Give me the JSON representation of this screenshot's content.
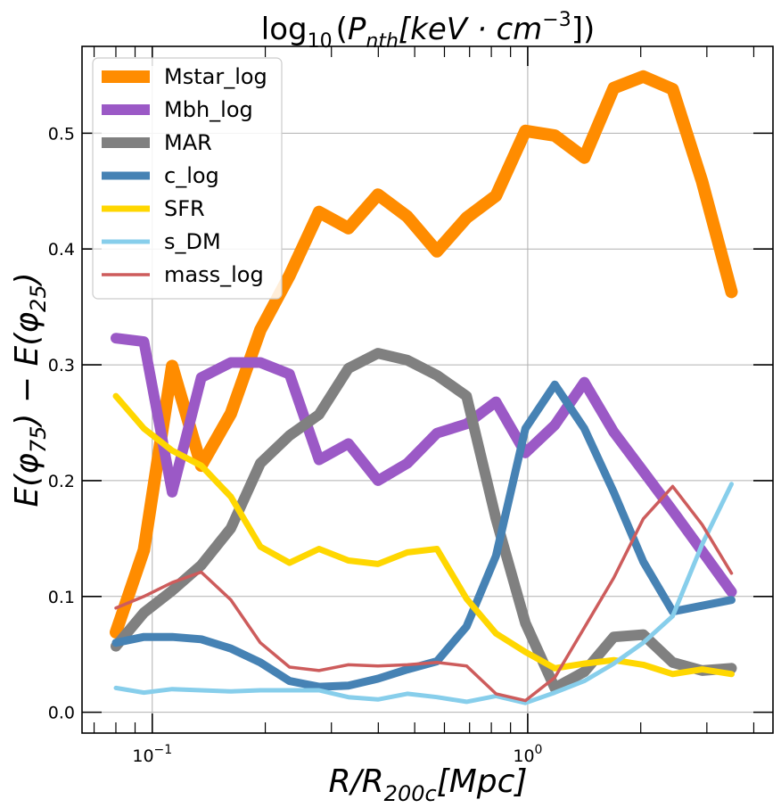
{
  "chart_data": {
    "type": "line",
    "title_parts": {
      "log": "log",
      "log_sub": "10",
      "open": "(",
      "P": "P",
      "P_sub": "nth",
      "bracket": "[keV · cm",
      "exp": "−3",
      "close": "])"
    },
    "xlabel_parts": {
      "main": "R/R",
      "sub": "200c",
      "unit": "[Mpc]"
    },
    "ylabel_parts": {
      "a": "E(φ",
      "a_sub": "75",
      "b": ") − E(φ",
      "b_sub": "25",
      "c": ")"
    },
    "xscale": "log",
    "xlim": [
      0.065,
      4.5
    ],
    "ylim": [
      -0.018,
      0.575
    ],
    "grid": true,
    "legend_position": "upper-left",
    "y_ticks": [
      0.0,
      0.1,
      0.2,
      0.3,
      0.4,
      0.5
    ],
    "y_tick_labels": [
      "0.0",
      "0.1",
      "0.2",
      "0.3",
      "0.4",
      "0.5"
    ],
    "x_major_ticks": [
      0.1,
      1.0
    ],
    "x_tick_labels": [
      {
        "base": "10",
        "exp": "−1"
      },
      {
        "base": "10",
        "exp": "0"
      }
    ],
    "x_minor_ticks": [
      0.07,
      0.08,
      0.09,
      0.2,
      0.3,
      0.4,
      0.5,
      0.6,
      0.7,
      0.8,
      0.9,
      2,
      3,
      4
    ],
    "x": [
      0.08,
      0.095,
      0.113,
      0.135,
      0.162,
      0.194,
      0.232,
      0.278,
      0.333,
      0.399,
      0.478,
      0.573,
      0.687,
      0.823,
      0.986,
      1.181,
      1.415,
      1.695,
      2.031,
      2.433,
      2.915,
      3.49
    ],
    "series": [
      {
        "name": "Mstar_log",
        "color": "#ff8c00",
        "width": 14,
        "values": [
          0.069,
          0.14,
          0.299,
          0.213,
          0.258,
          0.33,
          0.377,
          0.432,
          0.418,
          0.447,
          0.428,
          0.398,
          0.427,
          0.446,
          0.502,
          0.498,
          0.479,
          0.539,
          0.549,
          0.538,
          0.458,
          0.363
        ]
      },
      {
        "name": "Mbh_log",
        "color": "#9b59c6",
        "width": 12,
        "values": [
          0.323,
          0.32,
          0.19,
          0.289,
          0.302,
          0.302,
          0.292,
          0.218,
          0.232,
          0.2,
          0.215,
          0.241,
          0.249,
          0.268,
          0.224,
          0.248,
          0.285,
          0.242,
          0.208,
          0.174,
          0.139,
          0.104
        ]
      },
      {
        "name": "MAR",
        "color": "#808080",
        "width": 12,
        "values": [
          0.057,
          0.086,
          0.105,
          0.127,
          0.159,
          0.215,
          0.239,
          0.257,
          0.297,
          0.31,
          0.304,
          0.291,
          0.273,
          0.167,
          0.077,
          0.021,
          0.035,
          0.065,
          0.067,
          0.043,
          0.036,
          0.038
        ]
      },
      {
        "name": "c_log",
        "color": "#4682b4",
        "width": 9,
        "values": [
          0.06,
          0.065,
          0.065,
          0.063,
          0.055,
          0.043,
          0.027,
          0.022,
          0.023,
          0.029,
          0.037,
          0.044,
          0.074,
          0.135,
          0.245,
          0.283,
          0.245,
          0.19,
          0.13,
          0.087,
          0.092,
          0.097
        ]
      },
      {
        "name": "SFR",
        "color": "#ffd700",
        "width": 7,
        "values": [
          0.273,
          0.245,
          0.226,
          0.213,
          0.186,
          0.143,
          0.129,
          0.141,
          0.131,
          0.128,
          0.138,
          0.141,
          0.098,
          0.068,
          0.052,
          0.038,
          0.042,
          0.045,
          0.041,
          0.033,
          0.037,
          0.033
        ]
      },
      {
        "name": "s_DM",
        "color": "#87ceeb",
        "width": 5,
        "values": [
          0.021,
          0.017,
          0.02,
          0.019,
          0.018,
          0.019,
          0.019,
          0.019,
          0.013,
          0.011,
          0.016,
          0.013,
          0.009,
          0.014,
          0.008,
          0.017,
          0.027,
          0.042,
          0.06,
          0.083,
          0.145,
          0.197
        ]
      },
      {
        "name": "mass_log",
        "color": "#cd5c5c",
        "width": 3.5,
        "values": [
          0.09,
          0.1,
          0.112,
          0.121,
          0.097,
          0.06,
          0.039,
          0.036,
          0.041,
          0.04,
          0.041,
          0.043,
          0.04,
          0.016,
          0.01,
          0.03,
          0.073,
          0.116,
          0.167,
          0.195,
          0.162,
          0.12
        ]
      }
    ]
  }
}
